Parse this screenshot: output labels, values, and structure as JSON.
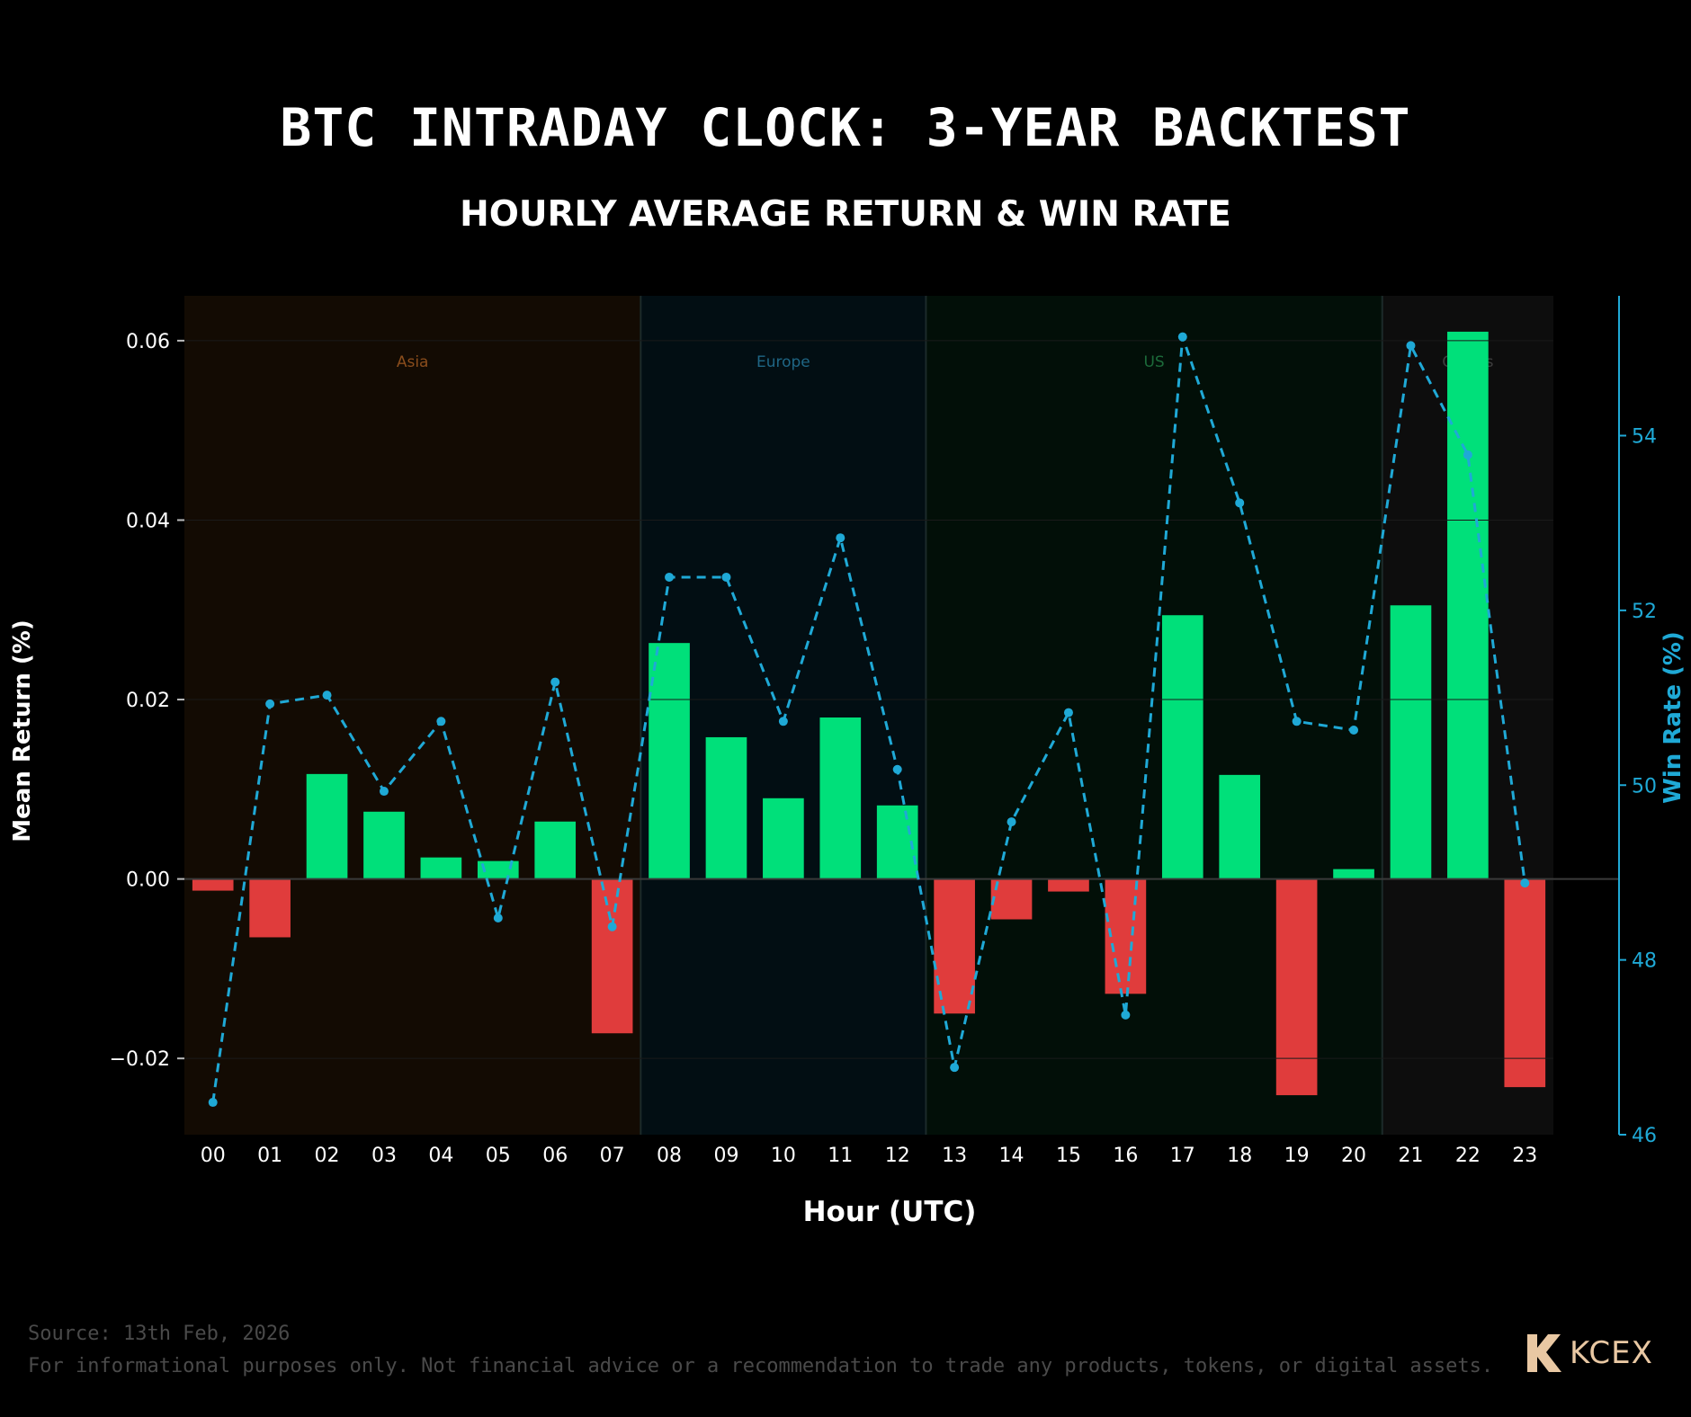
{
  "title": "BTC INTRADAY CLOCK: 3-YEAR BACKTEST",
  "subtitle": "HOURLY AVERAGE RETURN & WIN RATE",
  "footer": {
    "source": "Source: 13th Feb, 2026",
    "disclaimer": "For informational purposes only. Not financial advice or a recommendation to trade any products, tokens, or digital assets.",
    "brand": "KCEX"
  },
  "colors": {
    "positive_bar": "#00e07a",
    "negative_bar": "#e03c3c",
    "win_rate_line": "#1fa9d6",
    "asia_band": "#130b03",
    "europe_band": "#020e13",
    "us_band": "#020f08",
    "others_band": "#0d0d0d"
  },
  "chart_data": {
    "type": "bar",
    "xlabel": "Hour (UTC)",
    "ylabel": "Mean Return (%)",
    "y2label": "Win Rate (%)",
    "categories": [
      "00",
      "01",
      "02",
      "03",
      "04",
      "05",
      "06",
      "07",
      "08",
      "09",
      "10",
      "11",
      "12",
      "13",
      "14",
      "15",
      "16",
      "17",
      "18",
      "19",
      "20",
      "21",
      "22",
      "23"
    ],
    "y_ticks": [
      -0.02,
      0.0,
      0.02,
      0.04,
      0.06
    ],
    "y_tick_labels": [
      "−0.02",
      "0.00",
      "0.02",
      "0.04",
      "0.06"
    ],
    "ylim": [
      -0.0285,
      0.065
    ],
    "y2_ticks": [
      46,
      48,
      50,
      52,
      54
    ],
    "y2lim": [
      46,
      55.6
    ],
    "series": [
      {
        "type": "bar",
        "axis": "left",
        "values": [
          -0.0013,
          -0.0065,
          0.0117,
          0.0075,
          0.0024,
          0.002,
          0.0064,
          -0.0172,
          0.0263,
          0.0158,
          0.009,
          0.018,
          0.0082,
          -0.015,
          -0.0045,
          -0.0014,
          -0.0128,
          0.0294,
          0.0116,
          -0.0241,
          0.0011,
          0.0305,
          0.061,
          -0.0232
        ]
      },
      {
        "type": "line",
        "axis": "right",
        "style": "dashed-with-markers",
        "values": [
          46.37,
          50.93,
          51.03,
          49.93,
          50.73,
          48.48,
          51.18,
          48.38,
          52.38,
          52.38,
          50.73,
          52.83,
          50.18,
          46.77,
          49.58,
          50.83,
          47.37,
          55.13,
          53.23,
          50.73,
          50.63,
          55.03,
          53.78,
          48.88
        ]
      }
    ],
    "sessions": [
      {
        "label": "Asia",
        "start_hour": 0,
        "end_hour": 7,
        "text_color": "#8a4d1c"
      },
      {
        "label": "Europe",
        "start_hour": 8,
        "end_hour": 12,
        "text_color": "#1f6685"
      },
      {
        "label": "US",
        "start_hour": 13,
        "end_hour": 20,
        "text_color": "#1c6a3a"
      },
      {
        "label": "Others",
        "start_hour": 21,
        "end_hour": 23,
        "text_color": "#3e3e3e"
      }
    ],
    "grid": false,
    "legend": "none"
  }
}
